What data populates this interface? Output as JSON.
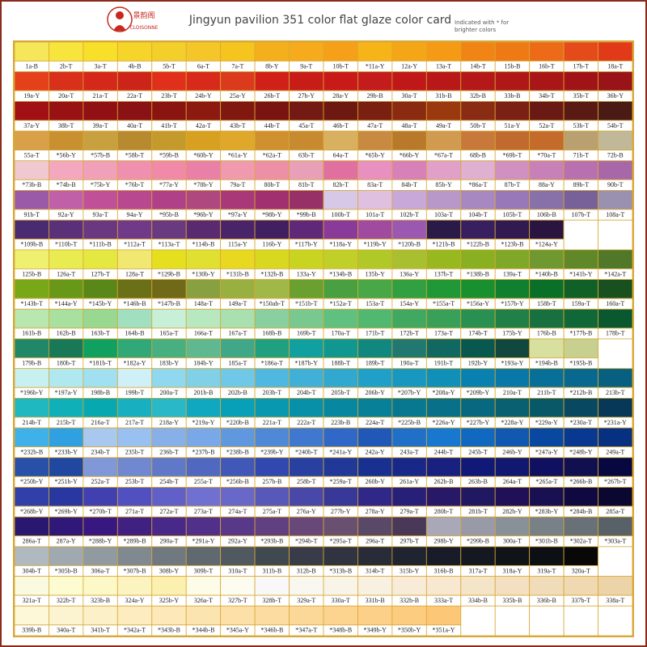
{
  "header": {
    "logo_name": "景韵阁",
    "logo_text": "CLOISONNE",
    "title": "Jingyun pavilion 351 color flat glaze color card",
    "note": [
      "Indicated with * for",
      "brighter colors"
    ]
  },
  "rows": [
    {
      "labels": [
        "1a-B",
        "2b-T",
        "3a-T",
        "4b-B",
        "5b-T",
        "6a-T",
        "7a-T",
        "8b-Y",
        "9a-T",
        "10b-T",
        "*11a-Y",
        "12a-Y",
        "13a-T",
        "14b-T",
        "15b-B",
        "16b-T",
        "17b-T",
        "18a-T"
      ],
      "colors": [
        "#f6e65a",
        "#f7e43c",
        "#f8df2a",
        "#f5d52a",
        "#f3cf2c",
        "#f4c62a",
        "#f6c41e",
        "#f4b01c",
        "#f6ab1c",
        "#f6a01a",
        "#f6b418",
        "#f5a616",
        "#f49a14",
        "#f08414",
        "#ee7a16",
        "#ec6a18",
        "#e44a1a",
        "#e03a18"
      ]
    },
    {
      "labels": [
        "19a-Y",
        "20a-T",
        "21a-T",
        "22a-T",
        "23b-T",
        "24b-Y",
        "25a-Y",
        "26b-T",
        "27b-Y",
        "28a-Y",
        "29b-B",
        "30a-T",
        "31b-B",
        "32b-B",
        "33b-B",
        "34b-T",
        "35b-T",
        "36b-Y"
      ],
      "colors": [
        "#e4401c",
        "#d8301a",
        "#d4281a",
        "#cc2418",
        "#e0301c",
        "#d82a1a",
        "#dc3a1c",
        "#d02018",
        "#c81c18",
        "#c81a18",
        "#c41c1c",
        "#c01818",
        "#b81818",
        "#b41818",
        "#b01818",
        "#a81618",
        "#a01418",
        "#981418"
      ]
    },
    {
      "labels": [
        "37a-Y",
        "38b-T",
        "39a-T",
        "40a-T",
        "41b-T",
        "42a-T",
        "43b-T",
        "44b-T",
        "45a-T",
        "46b-T",
        "47a-T",
        "48a-T",
        "49a-T",
        "50b-T",
        "51a-Y",
        "52a-T",
        "53b-T",
        "54b-T"
      ],
      "colors": [
        "#a01014",
        "#981214",
        "#901014",
        "#8a1214",
        "#8a1410",
        "#8c1a10",
        "#801810",
        "#7a1410",
        "#741a14",
        "#6e1812",
        "#7a2010",
        "#8a2a10",
        "#9a3810",
        "#8a2c14",
        "#7a2014",
        "#6a1a14",
        "#5a1a14",
        "#4a1a14"
      ]
    },
    {
      "labels": [
        "55a-T",
        "*56b-Y",
        "*57b-B",
        "*58b-T",
        "*59b-B",
        "*60b-Y",
        "*61a-Y",
        "*62a-T",
        "63b-T",
        "64a-T",
        "*65b-Y",
        "*66b-Y",
        "*67a-T",
        "68b-B",
        "*69b-T",
        "*70a-T",
        "71b-T",
        "72b-B"
      ],
      "colors": [
        "#d8a048",
        "#c89030",
        "#c8a040",
        "#b88a30",
        "#c49a2c",
        "#d8a020",
        "#e0a82a",
        "#d09030",
        "#c88a30",
        "#d8b060",
        "#c88a40",
        "#b87a2a",
        "#d09a50",
        "#c8783a",
        "#c06a30",
        "#c46a2a",
        "#b8a070",
        "#c0b898"
      ]
    },
    {
      "labels": [
        "*73b-B",
        "*74b-B",
        "*75b-Y",
        "*76b-T",
        "*77a-Y",
        "*78b-Y",
        "79a-T",
        "80b-T",
        "81b-T",
        "82b-T",
        "83a-T",
        "84b-T",
        "85b-Y",
        "*86a-T",
        "87b-T",
        "88a-Y",
        "89b-T",
        "90b-T"
      ],
      "colors": [
        "#f0c8d0",
        "#f4a8c0",
        "#f0a0b8",
        "#f090b0",
        "#f08aa8",
        "#e880a8",
        "#f09ab0",
        "#ec90a8",
        "#e8a0b8",
        "#e070a0",
        "#e890c0",
        "#d880b8",
        "#e0a0c8",
        "#e0b0d0",
        "#d090c0",
        "#c880b8",
        "#b870b0",
        "#a868a8"
      ]
    },
    {
      "labels": [
        "91b-T",
        "92a-Y",
        "93a-T",
        "94a-Y",
        "*95b-B",
        "*96b-Y",
        "*97a-Y",
        "*98b-Y",
        "*99b-B",
        "100b-T",
        "101a-T",
        "102b-T",
        "103a-T",
        "104b-T",
        "105b-T",
        "106b-B",
        "107b-T",
        "108a-T"
      ],
      "colors": [
        "#9a5aa8",
        "#c060a8",
        "#c05098",
        "#b84890",
        "#b04088",
        "#b04880",
        "#a83878",
        "#a03070",
        "#983068",
        "#d8c8e8",
        "#e0c0e0",
        "#c8a8d8",
        "#b898c8",
        "#a888c0",
        "#9878b8",
        "#8870a8",
        "#786098",
        "#9a90b0"
      ]
    },
    {
      "labels": [
        "*109b-B",
        "*110b-T",
        "*111b-B",
        "*112a-T",
        "*113a-T",
        "*114b-B",
        "115a-Y",
        "116b-Y",
        "*117b-Y",
        "*118a-Y",
        "*119b-Y",
        "*120b-B",
        "*121b-B",
        "*122b-B",
        "*123b-B",
        "*124a-Y"
      ],
      "colors": [
        "#4a2a70",
        "#5a3078",
        "#6a3880",
        "#703a88",
        "#6a3a80",
        "#5a2a70",
        "#4a2468",
        "#402060",
        "#602878",
        "#8a3a98",
        "#a04aa0",
        "#9a58b0",
        "#2a1a48",
        "#382060",
        "#301a50",
        "#2a1440"
      ]
    },
    {
      "labels": [
        "125b-B",
        "126a-T",
        "127b-T",
        "128a-T",
        "*129b-B",
        "*130b-Y",
        "*131b-B",
        "*132b-B",
        "133a-Y",
        "*134b-B",
        "135b-Y",
        "136a-Y",
        "137b-T",
        "*138b-B",
        "139a-T",
        "*140b-B",
        "*141b-Y",
        "*142a-T"
      ],
      "colors": [
        "#f0f070",
        "#e8ec50",
        "#e4e840",
        "#f0e870",
        "#e4e020",
        "#e0e030",
        "#e8d820",
        "#d8d820",
        "#c8d420",
        "#c0d028",
        "#b0c828",
        "#a8c030",
        "#98b820",
        "#88b020",
        "#80a828",
        "#709830",
        "#608828",
        "#507828"
      ]
    },
    {
      "labels": [
        "*143b-T",
        "*144a-Y",
        "*145b-Y",
        "*146b-B",
        "*147b-B",
        "148a-T",
        "149a-T",
        "*150ab-T",
        "*151b-T",
        "*152a-T",
        "153a-T",
        "154a-Y",
        "*155a-T",
        "*156a-Y",
        "*157b-Y",
        "158b-T",
        "159a-T",
        "160a-T"
      ],
      "colors": [
        "#78a818",
        "#689818",
        "#5a8818",
        "#6a7018",
        "#706a18",
        "#88a040",
        "#98b040",
        "#a0b848",
        "#6aa030",
        "#48a040",
        "#48a848",
        "#30a040",
        "#209838",
        "#189030",
        "#108030",
        "#0a7028",
        "#106028",
        "#185020"
      ]
    },
    {
      "labels": [
        "161b-B",
        "162b-B",
        "163b-T",
        "164b-B",
        "165a-T",
        "166a-T",
        "167a-T",
        "168b-B",
        "169b-T",
        "170a-T",
        "171b-T",
        "172b-T",
        "173a-T",
        "174b-T",
        "175b-Y",
        "176b-B",
        "*177b-B",
        "178b-T"
      ],
      "colors": [
        "#b8e8b0",
        "#a8e0a0",
        "#98d890",
        "#a0e0c0",
        "#c8f0d8",
        "#b8e8c0",
        "#a8e0b0",
        "#88d0a0",
        "#78c890",
        "#60c080",
        "#50b870",
        "#40a860",
        "#38a058",
        "#289050",
        "#208048",
        "#187040",
        "#106838",
        "#0a5830"
      ]
    },
    {
      "labels": [
        "179b-B",
        "180b-T",
        "*181b-T",
        "*182a-Y",
        "183b-Y",
        "184b-Y",
        "185a-T",
        "*186a-T",
        "*187b-Y",
        "188b-T",
        "189b-T",
        "190a-T",
        "191b-T",
        "192b-Y",
        "*193a-Y",
        "*194b-B",
        "*195b-B"
      ],
      "colors": [
        "#208868",
        "#187858",
        "#10a060",
        "#30a878",
        "#48b080",
        "#60b890",
        "#40a888",
        "#20a080",
        "#10a0a0",
        "#109890",
        "#108880",
        "#207870",
        "#106860",
        "#085850",
        "#104840",
        "#d8e0a0",
        "#c8d090"
      ]
    },
    {
      "labels": [
        "*196b-Y",
        "*197a-Y",
        "198b-B",
        "199b-T",
        "200a-T",
        "201b-B",
        "202b-B",
        "203b-T",
        "204b-T",
        "205b-T",
        "206b-Y",
        "*207b-Y",
        "*208a-Y",
        "*209b-Y",
        "210a-T",
        "211b-T",
        "*212b-B",
        "213b-T"
      ],
      "colors": [
        "#c8f0f0",
        "#b0e8f0",
        "#a0e0f0",
        "#d0f0f8",
        "#90d8f0",
        "#80d0e8",
        "#70c8e8",
        "#50b8e0",
        "#40b0d8",
        "#30a8d0",
        "#20a0c8",
        "#1898c0",
        "#1090b8",
        "#0880b0",
        "#0878a8",
        "#087098",
        "#086890",
        "#086080"
      ]
    },
    {
      "labels": [
        "214b-T",
        "215b-T",
        "216a-T",
        "217a-T",
        "218a-Y",
        "*219a-Y",
        "*220b-B",
        "221a-T",
        "222a-T",
        "223b-B",
        "224a-T",
        "*225b-B",
        "*226a-Y",
        "*227b-Y",
        "*228a-Y",
        "*229a-Y",
        "*230a-T",
        "*231a-Y"
      ],
      "colors": [
        "#20b8c0",
        "#10b0b8",
        "#08a8b0",
        "#18b0c0",
        "#28b8c8",
        "#10a8c0",
        "#08a0b8",
        "#0898b0",
        "#0890a8",
        "#0888a0",
        "#088098",
        "#087890",
        "#087088",
        "#086880",
        "#086070",
        "#085868",
        "#084860",
        "#083858"
      ]
    },
    {
      "labels": [
        "*232b-B",
        "*233b-Y",
        "234b-T",
        "235b-T",
        "236b-T",
        "*237b-B",
        "*238b-B",
        "*239b-Y",
        "*240b-T",
        "*241a-Y",
        "242a-Y",
        "243a-T",
        "244b-T",
        "245b-T",
        "246b-Y",
        "*247a-Y",
        "*248b-Y",
        "249a-T"
      ],
      "colors": [
        "#40b0e8",
        "#30a0e0",
        "#a8c8f0",
        "#98c0f0",
        "#88b0e8",
        "#78a8e8",
        "#6098e0",
        "#5088d8",
        "#4078d0",
        "#3068c8",
        "#2058b8",
        "#2070c8",
        "#1878d0",
        "#1068c0",
        "#1058b0",
        "#0848a0",
        "#083890",
        "#083080"
      ]
    },
    {
      "labels": [
        "*250b-Y",
        "*251b-Y",
        "252a-T",
        "253b-T",
        "254b-T",
        "255a-T",
        "*256b-B",
        "257b-B",
        "258b-T",
        "*259a-T",
        "260b-Y",
        "261a-Y",
        "262b-B",
        "263b-B",
        "264a-T",
        "*265a-T",
        "*266b-B",
        "*267b-T"
      ],
      "colors": [
        "#2850a8",
        "#2048a0",
        "#8098d8",
        "#7088d0",
        "#6078c8",
        "#5068c0",
        "#4058b8",
        "#3048b0",
        "#2840a0",
        "#203898",
        "#183090",
        "#182888",
        "#182080",
        "#101878",
        "#101870",
        "#101060",
        "#101050",
        "#080840"
      ]
    },
    {
      "labels": [
        "*268b-Y",
        "*269b-Y",
        "*270b-T",
        "271a-T",
        "272a-T",
        "273a-T",
        "274a-T",
        "275a-T",
        "276a-Y",
        "277b-Y",
        "278a-Y",
        "279a-T",
        "280b-T",
        "281b-T",
        "282b-Y",
        "*283b-Y",
        "*284b-B",
        "285a-T"
      ],
      "colors": [
        "#3040a8",
        "#2838a0",
        "#4040b0",
        "#5050c0",
        "#6060c8",
        "#7070d0",
        "#6868c8",
        "#5858b8",
        "#4848a8",
        "#383898",
        "#302888",
        "#282078",
        "#281868",
        "#201860",
        "#201058",
        "#181050",
        "#100840",
        "#0a0830"
      ]
    },
    {
      "labels": [
        "286a-T",
        "287a-Y",
        "*288b-Y",
        "*289b-B",
        "290a-T",
        "*291a-Y",
        "292a-Y",
        "*293b-B",
        "*294b-T",
        "*295a-T",
        "296a-T",
        "297b-T",
        "298b-Y",
        "*299b-B",
        "300a-T",
        "*301b-B",
        "*302a-T",
        "*303a-T"
      ],
      "colors": [
        "#2a1870",
        "#301878",
        "#381880",
        "#402080",
        "#482888",
        "#503088",
        "#583888",
        "#604080",
        "#684878",
        "#6a5070",
        "#5a4868",
        "#4a3858",
        "#a8a8b8",
        "#989aa8",
        "#889098",
        "#788088",
        "#687078",
        "#586068"
      ]
    },
    {
      "labels": [
        "304b-T",
        "*305b-B",
        "306a-T",
        "*307b-B",
        "308b-Y",
        "309b-T",
        "310a-T",
        "311b-B",
        "312b-B",
        "*313b-B",
        "314b-T",
        "315b-Y",
        "316b-B",
        "317a-T",
        "318a-Y",
        "319a-T",
        "320a-T"
      ],
      "colors": [
        "#b0b8c0",
        "#a0a8b0",
        "#909aa0",
        "#808890",
        "#707880",
        "#606870",
        "#505860",
        "#404850",
        "#383c48",
        "#303440",
        "#282c38",
        "#202430",
        "#181c28",
        "#141820",
        "#101418",
        "#0c1014",
        "#080808"
      ]
    },
    {
      "labels": [
        "321a-T",
        "322b-T",
        "323b-B",
        "324a-Y",
        "325b-Y",
        "326a-T",
        "327b-T",
        "328b-T",
        "329a-T",
        "330a-T",
        "331b-B",
        "332b-B",
        "333a-T",
        "334b-B",
        "335b-B",
        "336b-B",
        "337b-T",
        "338a-T"
      ],
      "colors": [
        "#fafae0",
        "#fcfcd0",
        "#fcf8c8",
        "#fcf4c0",
        "#fcf0b0",
        "#fcfce8",
        "#fcfcf0",
        "#f8f8f8",
        "#f8f8f0",
        "#f8f4e8",
        "#f8f0e0",
        "#f8ecd8",
        "#f8e8d0",
        "#f4e4c8",
        "#f4e0c0",
        "#f0dcb8",
        "#f0d8b0",
        "#ecd4a8"
      ]
    },
    {
      "labels": [
        "339b-B",
        "340a-T",
        "341b-T",
        "*342a-T",
        "*343b-B",
        "*344b-B",
        "*345a-Y",
        "*346b-B",
        "*347a-T",
        "*348b-B",
        "*349b-Y",
        "*350b-Y",
        "*351a-Y"
      ],
      "colors": [
        "#fcf8d8",
        "#fcf4d0",
        "#fcf0c8",
        "#fcecc0",
        "#fce8b8",
        "#fce4b0",
        "#fce0a8",
        "#fcdca0",
        "#fcd898",
        "#fcd490",
        "#fcd088",
        "#fccc80",
        "#fcc878"
      ]
    }
  ]
}
